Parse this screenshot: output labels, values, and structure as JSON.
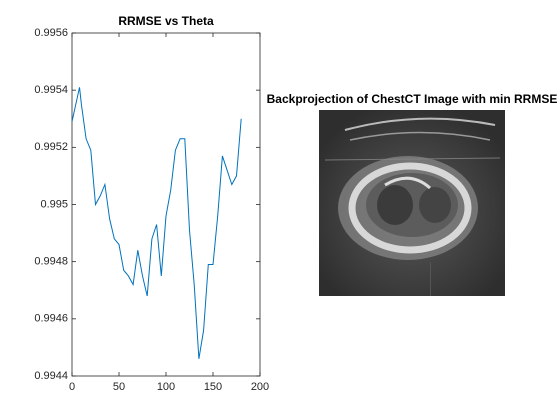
{
  "chart_data": [
    {
      "type": "line",
      "title": "RRMSE vs Theta",
      "x": [
        0,
        8,
        10,
        15,
        20,
        25,
        30,
        35,
        40,
        45,
        50,
        55,
        60,
        65,
        70,
        75,
        80,
        85,
        90,
        95,
        100,
        105,
        110,
        115,
        120,
        125,
        130,
        135,
        140,
        145,
        150,
        155,
        160,
        165,
        170,
        175,
        180
      ],
      "series": [
        {
          "color": "#0072bd",
          "values": [
            0.99529,
            0.99541,
            0.99535,
            0.99523,
            0.99519,
            0.995,
            0.99503,
            0.99507,
            0.99495,
            0.99488,
            0.99486,
            0.99477,
            0.99475,
            0.99472,
            0.99484,
            0.99475,
            0.99468,
            0.99488,
            0.99493,
            0.99475,
            0.99496,
            0.99505,
            0.99519,
            0.99523,
            0.99523,
            0.99491,
            0.99472,
            0.99446,
            0.99456,
            0.99479,
            0.99479,
            0.99496,
            0.99517,
            0.99512,
            0.99507,
            0.9951,
            0.9953
          ]
        }
      ],
      "xlim": [
        0,
        200
      ],
      "xticks": [
        0,
        50,
        100,
        150,
        200
      ],
      "ylim": [
        0.9944,
        0.9956
      ],
      "yticks": [
        0.9944,
        0.9946,
        0.9948,
        0.995,
        0.9952,
        0.9954,
        0.9956
      ]
    },
    {
      "type": "image",
      "title": "Backprojection of ChestCT Image with min RRMSE"
    }
  ]
}
